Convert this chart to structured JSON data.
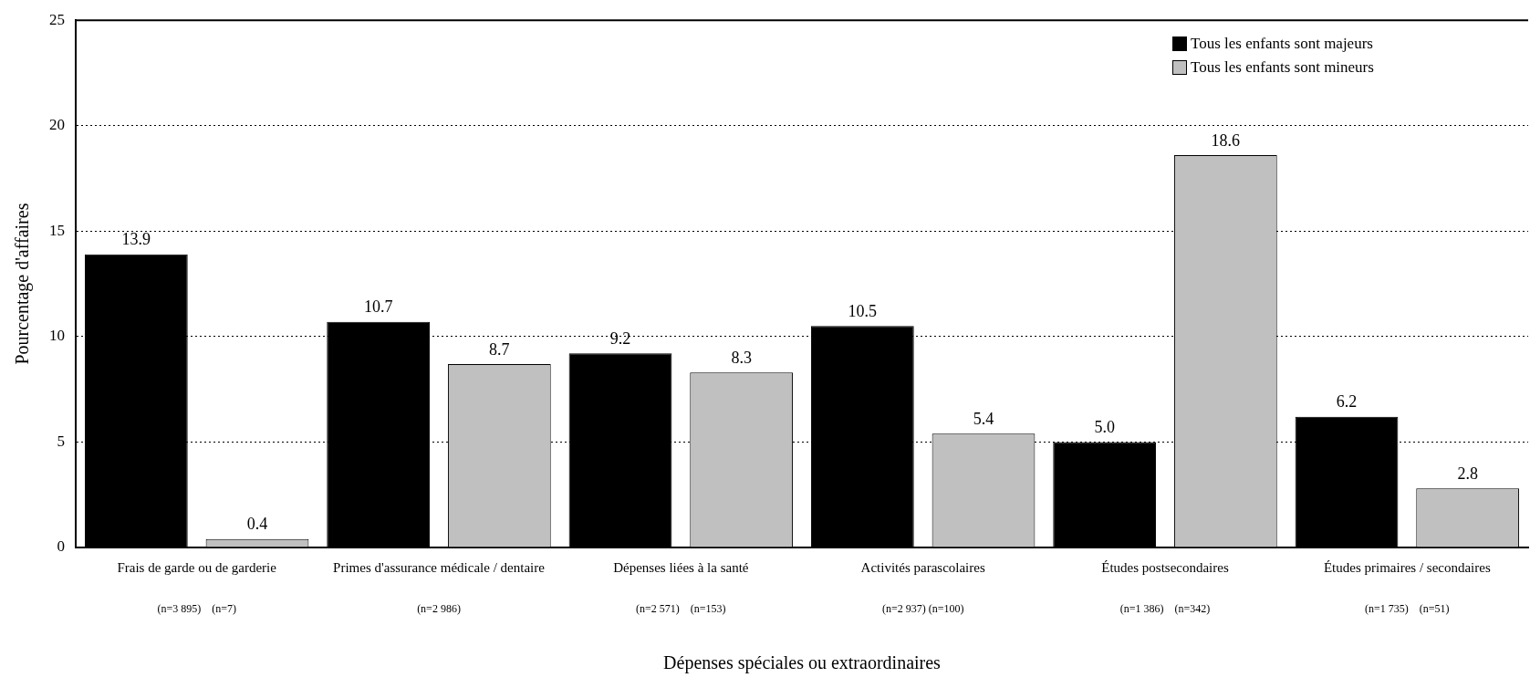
{
  "chart_data": {
    "type": "bar",
    "xlabel": "Dépenses spéciales ou extraordinaires",
    "ylabel": "Pourcentage d'affaires",
    "categories": [
      "Frais de garde ou de garderie",
      "Primes d'assurance médicale / dentaire",
      "Dépenses liées à la santé",
      "Activités parascolaires",
      "Études postsecondaires",
      "Études primaires / secondaires"
    ],
    "series": [
      {
        "name": "Tous les enfants sont majeurs",
        "color": "#000000",
        "values": [
          13.9,
          10.7,
          9.2,
          10.5,
          5.0,
          6.2
        ],
        "value_labels": [
          "13.9",
          "10.7",
          "9.2",
          "10.5",
          "5.0",
          "6.2"
        ]
      },
      {
        "name": "Tous les enfants sont mineurs",
        "color": "#c0c0c0",
        "values": [
          0.4,
          8.7,
          8.3,
          5.4,
          18.6,
          2.8
        ],
        "value_labels": [
          "0.4",
          "8.7",
          "8.3",
          "5.4",
          "18.6",
          "2.8"
        ]
      }
    ],
    "ylim": [
      0,
      25
    ],
    "yticks": [
      0,
      5,
      10,
      15,
      20,
      25
    ],
    "grid": "y",
    "legend": "top right",
    "annotations": [
      "(n=3 895)    (n=7)",
      "(n=2 986)",
      "(n=2 571)    (n=153)",
      "(n=2 937) (n=100)",
      "(n=1 386)    (n=342)",
      "(n=1 735)    (n=51)"
    ]
  }
}
